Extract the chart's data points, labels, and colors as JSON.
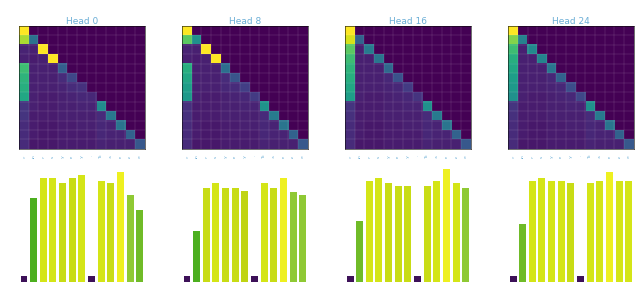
{
  "tokens": [
    "<s>",
    "An",
    "embar",
    "ass",
    "ingly",
    "simple",
    "way",
    ".",
    "To",
    "compress",
    "the",
    "kv",
    "cache"
  ],
  "head_labels": [
    "Head 0",
    "Head 8",
    "Head 16",
    "Head 24"
  ],
  "n_tokens": 13,
  "title_color": "#6baed6",
  "tick_color": "#6baed6",
  "figsize": [
    6.4,
    2.85
  ],
  "attn_heads": [
    [
      [
        1.0,
        0,
        0,
        0,
        0,
        0,
        0,
        0,
        0,
        0,
        0,
        0,
        0
      ],
      [
        0.7,
        0.3,
        0,
        0,
        0,
        0,
        0,
        0,
        0,
        0,
        0,
        0,
        0
      ],
      [
        0.08,
        0.07,
        0.85,
        0,
        0,
        0,
        0,
        0,
        0,
        0,
        0,
        0,
        0
      ],
      [
        0.07,
        0.06,
        0.07,
        0.8,
        0,
        0,
        0,
        0,
        0,
        0,
        0,
        0,
        0
      ],
      [
        0.55,
        0.07,
        0.07,
        0.07,
        0.24,
        0,
        0,
        0,
        0,
        0,
        0,
        0,
        0
      ],
      [
        0.52,
        0.07,
        0.07,
        0.07,
        0.1,
        0.17,
        0,
        0,
        0,
        0,
        0,
        0,
        0
      ],
      [
        0.5,
        0.07,
        0.07,
        0.07,
        0.08,
        0.1,
        0.11,
        0,
        0,
        0,
        0,
        0,
        0
      ],
      [
        0.48,
        0.07,
        0.06,
        0.06,
        0.07,
        0.08,
        0.09,
        0.09,
        0,
        0,
        0,
        0,
        0
      ],
      [
        0.12,
        0.07,
        0.06,
        0.06,
        0.07,
        0.07,
        0.08,
        0.08,
        0.39,
        0,
        0,
        0,
        0
      ],
      [
        0.12,
        0.06,
        0.06,
        0.06,
        0.07,
        0.07,
        0.07,
        0.07,
        0.1,
        0.32,
        0,
        0,
        0
      ],
      [
        0.1,
        0.06,
        0.05,
        0.05,
        0.06,
        0.06,
        0.07,
        0.07,
        0.09,
        0.08,
        0.31,
        0,
        0
      ],
      [
        0.1,
        0.06,
        0.05,
        0.05,
        0.06,
        0.06,
        0.06,
        0.06,
        0.09,
        0.08,
        0.08,
        0.25,
        0
      ],
      [
        0.1,
        0.05,
        0.05,
        0.05,
        0.06,
        0.06,
        0.06,
        0.06,
        0.08,
        0.07,
        0.07,
        0.07,
        0.22
      ]
    ],
    [
      [
        1.0,
        0,
        0,
        0,
        0,
        0,
        0,
        0,
        0,
        0,
        0,
        0,
        0
      ],
      [
        0.6,
        0.4,
        0,
        0,
        0,
        0,
        0,
        0,
        0,
        0,
        0,
        0,
        0
      ],
      [
        0.08,
        0.07,
        0.85,
        0,
        0,
        0,
        0,
        0,
        0,
        0,
        0,
        0,
        0
      ],
      [
        0.07,
        0.06,
        0.07,
        0.8,
        0,
        0,
        0,
        0,
        0,
        0,
        0,
        0,
        0
      ],
      [
        0.5,
        0.07,
        0.07,
        0.07,
        0.29,
        0,
        0,
        0,
        0,
        0,
        0,
        0,
        0
      ],
      [
        0.48,
        0.07,
        0.07,
        0.07,
        0.1,
        0.21,
        0,
        0,
        0,
        0,
        0,
        0,
        0
      ],
      [
        0.45,
        0.07,
        0.07,
        0.07,
        0.09,
        0.1,
        0.15,
        0,
        0,
        0,
        0,
        0,
        0
      ],
      [
        0.43,
        0.07,
        0.06,
        0.06,
        0.07,
        0.08,
        0.09,
        0.14,
        0,
        0,
        0,
        0,
        0
      ],
      [
        0.11,
        0.06,
        0.06,
        0.06,
        0.07,
        0.07,
        0.08,
        0.08,
        0.41,
        0,
        0,
        0,
        0
      ],
      [
        0.11,
        0.06,
        0.06,
        0.06,
        0.07,
        0.07,
        0.07,
        0.07,
        0.1,
        0.33,
        0,
        0,
        0
      ],
      [
        0.1,
        0.06,
        0.05,
        0.05,
        0.06,
        0.06,
        0.07,
        0.07,
        0.09,
        0.08,
        0.31,
        0,
        0
      ],
      [
        0.1,
        0.06,
        0.05,
        0.05,
        0.06,
        0.06,
        0.06,
        0.06,
        0.09,
        0.08,
        0.08,
        0.25,
        0
      ],
      [
        0.1,
        0.05,
        0.05,
        0.05,
        0.06,
        0.06,
        0.06,
        0.06,
        0.08,
        0.07,
        0.07,
        0.07,
        0.22
      ]
    ],
    [
      [
        1.0,
        0,
        0,
        0,
        0,
        0,
        0,
        0,
        0,
        0,
        0,
        0,
        0
      ],
      [
        0.75,
        0.25,
        0,
        0,
        0,
        0,
        0,
        0,
        0,
        0,
        0,
        0,
        0
      ],
      [
        0.6,
        0.07,
        0.33,
        0,
        0,
        0,
        0,
        0,
        0,
        0,
        0,
        0,
        0
      ],
      [
        0.55,
        0.07,
        0.07,
        0.31,
        0,
        0,
        0,
        0,
        0,
        0,
        0,
        0,
        0
      ],
      [
        0.52,
        0.07,
        0.07,
        0.07,
        0.27,
        0,
        0,
        0,
        0,
        0,
        0,
        0,
        0
      ],
      [
        0.5,
        0.07,
        0.07,
        0.07,
        0.09,
        0.2,
        0,
        0,
        0,
        0,
        0,
        0,
        0
      ],
      [
        0.48,
        0.07,
        0.07,
        0.07,
        0.08,
        0.09,
        0.14,
        0,
        0,
        0,
        0,
        0,
        0
      ],
      [
        0.45,
        0.07,
        0.06,
        0.06,
        0.07,
        0.08,
        0.09,
        0.12,
        0,
        0,
        0,
        0,
        0
      ],
      [
        0.12,
        0.06,
        0.06,
        0.06,
        0.07,
        0.07,
        0.08,
        0.08,
        0.4,
        0,
        0,
        0,
        0
      ],
      [
        0.11,
        0.06,
        0.06,
        0.06,
        0.07,
        0.07,
        0.07,
        0.07,
        0.1,
        0.33,
        0,
        0,
        0
      ],
      [
        0.1,
        0.06,
        0.05,
        0.05,
        0.06,
        0.06,
        0.07,
        0.07,
        0.09,
        0.08,
        0.31,
        0,
        0
      ],
      [
        0.1,
        0.06,
        0.05,
        0.05,
        0.06,
        0.06,
        0.06,
        0.06,
        0.09,
        0.08,
        0.08,
        0.25,
        0
      ],
      [
        0.1,
        0.05,
        0.05,
        0.05,
        0.06,
        0.06,
        0.06,
        0.06,
        0.08,
        0.07,
        0.07,
        0.07,
        0.22
      ]
    ],
    [
      [
        1.0,
        0,
        0,
        0,
        0,
        0,
        0,
        0,
        0,
        0,
        0,
        0,
        0
      ],
      [
        0.65,
        0.35,
        0,
        0,
        0,
        0,
        0,
        0,
        0,
        0,
        0,
        0,
        0
      ],
      [
        0.55,
        0.07,
        0.38,
        0,
        0,
        0,
        0,
        0,
        0,
        0,
        0,
        0,
        0
      ],
      [
        0.5,
        0.07,
        0.07,
        0.36,
        0,
        0,
        0,
        0,
        0,
        0,
        0,
        0,
        0
      ],
      [
        0.48,
        0.07,
        0.07,
        0.07,
        0.31,
        0,
        0,
        0,
        0,
        0,
        0,
        0,
        0
      ],
      [
        0.45,
        0.07,
        0.07,
        0.07,
        0.09,
        0.25,
        0,
        0,
        0,
        0,
        0,
        0,
        0
      ],
      [
        0.43,
        0.07,
        0.07,
        0.07,
        0.08,
        0.09,
        0.19,
        0,
        0,
        0,
        0,
        0,
        0
      ],
      [
        0.4,
        0.07,
        0.06,
        0.06,
        0.07,
        0.08,
        0.09,
        0.17,
        0,
        0,
        0,
        0,
        0
      ],
      [
        0.12,
        0.06,
        0.06,
        0.06,
        0.07,
        0.07,
        0.08,
        0.08,
        0.4,
        0,
        0,
        0,
        0
      ],
      [
        0.11,
        0.06,
        0.06,
        0.06,
        0.07,
        0.07,
        0.07,
        0.07,
        0.1,
        0.33,
        0,
        0,
        0
      ],
      [
        0.1,
        0.06,
        0.05,
        0.05,
        0.06,
        0.06,
        0.07,
        0.07,
        0.09,
        0.08,
        0.31,
        0,
        0
      ],
      [
        0.1,
        0.06,
        0.05,
        0.05,
        0.06,
        0.06,
        0.06,
        0.06,
        0.09,
        0.08,
        0.08,
        0.25,
        0
      ],
      [
        0.1,
        0.05,
        0.05,
        0.05,
        0.06,
        0.06,
        0.06,
        0.06,
        0.08,
        0.07,
        0.07,
        0.07,
        0.22
      ]
    ]
  ],
  "bar_values": [
    [
      0.04,
      0.58,
      0.72,
      0.72,
      0.68,
      0.72,
      0.74,
      0.04,
      0.7,
      0.68,
      0.76,
      0.6,
      0.5
    ],
    [
      0.04,
      0.35,
      0.65,
      0.68,
      0.65,
      0.65,
      0.63,
      0.04,
      0.68,
      0.65,
      0.72,
      0.62,
      0.6
    ],
    [
      0.04,
      0.42,
      0.7,
      0.72,
      0.68,
      0.66,
      0.66,
      0.04,
      0.66,
      0.7,
      0.78,
      0.68,
      0.65
    ],
    [
      0.04,
      0.4,
      0.7,
      0.72,
      0.7,
      0.7,
      0.68,
      0.04,
      0.68,
      0.7,
      0.76,
      0.7,
      0.7
    ]
  ],
  "bar_colors": [
    [
      "#3d1158",
      "#4caf1f",
      "#d4e517",
      "#d4e517",
      "#c8dc15",
      "#c8dc15",
      "#d4e517",
      "#3d1158",
      "#d4e517",
      "#c8dc15",
      "#eef020",
      "#8fc934",
      "#70bb28"
    ],
    [
      "#3d1158",
      "#4caf1f",
      "#c8dc15",
      "#d4e517",
      "#c8dc15",
      "#c8dc15",
      "#c0d413",
      "#3d1158",
      "#d4e517",
      "#c8dc15",
      "#eef020",
      "#8fc934",
      "#8fc934"
    ],
    [
      "#3d1158",
      "#70bb28",
      "#d4e517",
      "#d4e517",
      "#c8dc15",
      "#c8dc15",
      "#c8dc15",
      "#3d1158",
      "#c8dc15",
      "#d4e517",
      "#eef020",
      "#d4e517",
      "#8fc934"
    ],
    [
      "#3d1158",
      "#70bb28",
      "#d4e517",
      "#d4e517",
      "#d4e517",
      "#d4e517",
      "#c8dc15",
      "#3d1158",
      "#d4e517",
      "#d4e517",
      "#eef020",
      "#d4e517",
      "#d4e517"
    ]
  ]
}
